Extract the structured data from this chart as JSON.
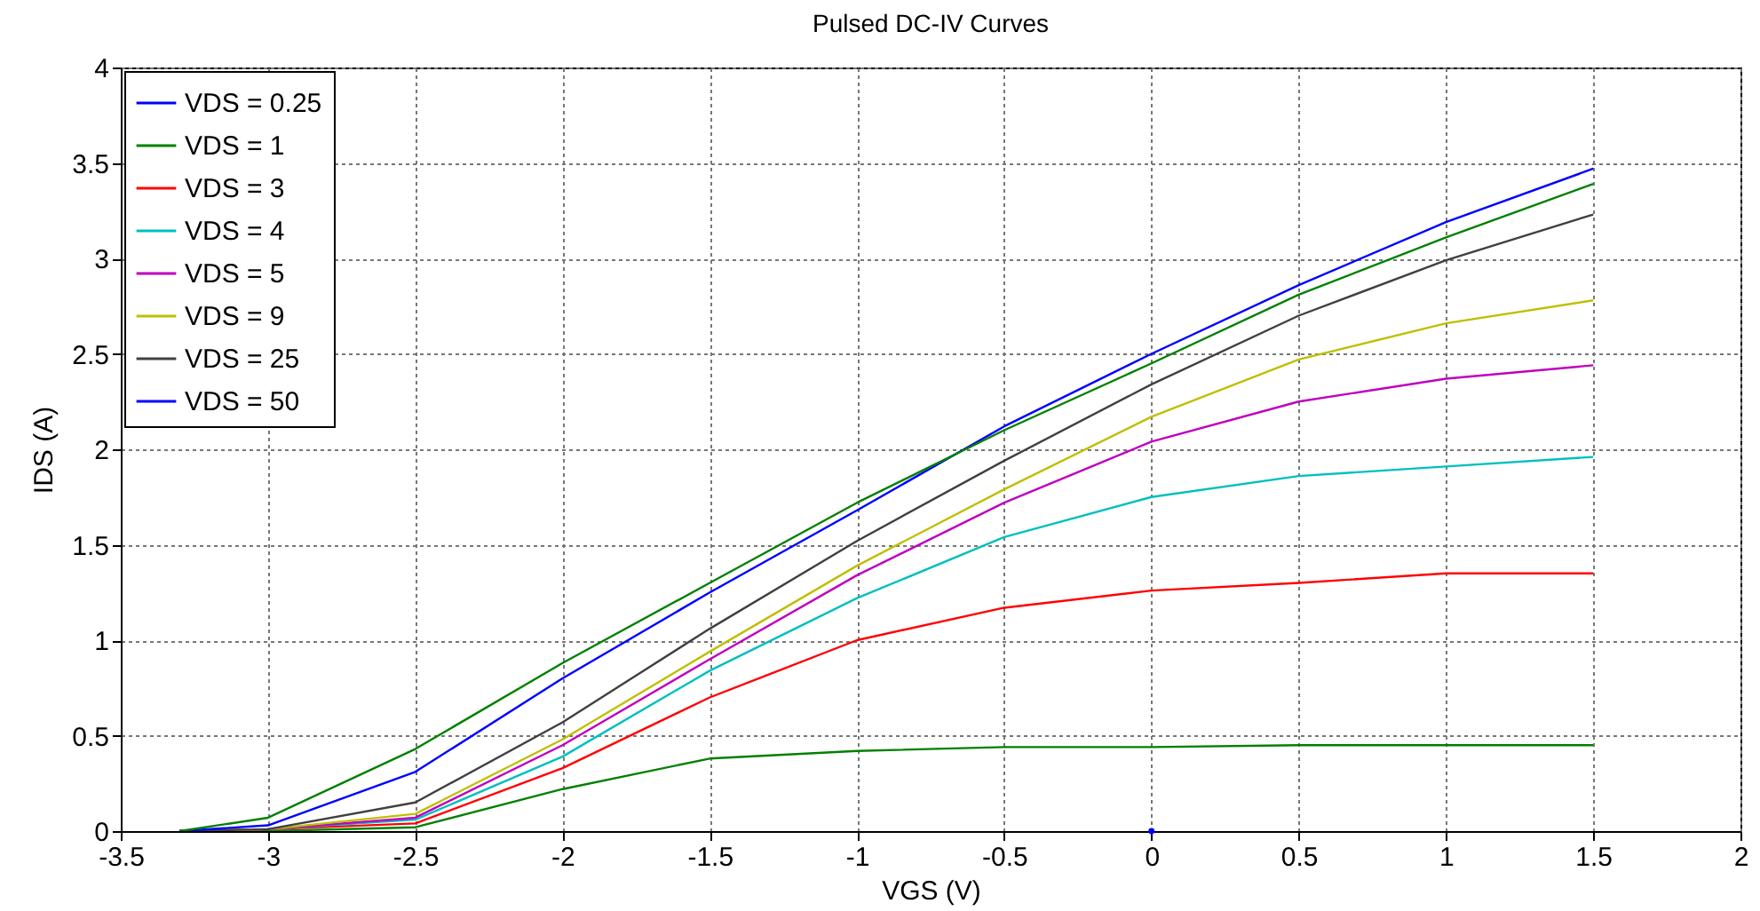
{
  "chart_data": {
    "type": "line",
    "title": "Pulsed DC-IV Curves",
    "xlabel": "VGS (V)",
    "ylabel": "IDS (A)",
    "xlim": [
      -3.5,
      2
    ],
    "xticks": [
      -3.5,
      -3,
      -2.5,
      -2,
      -1.5,
      -1,
      -0.5,
      0,
      0.5,
      1,
      1.5,
      2
    ],
    "ylim": [
      0,
      4
    ],
    "yticks": [
      0,
      0.5,
      1,
      1.5,
      2,
      2.5,
      3,
      3.5,
      4
    ],
    "grid": true,
    "legend": "top left",
    "x": [
      -3.3,
      -3,
      -2.5,
      -2,
      -1.5,
      -1,
      -0.5,
      0,
      0.5,
      1,
      1.5
    ],
    "series": [
      {
        "name": "VDS = 0.25",
        "color": "#0000ff",
        "marker": "circle",
        "x": [
          0
        ],
        "values": [
          0
        ]
      },
      {
        "name": "VDS = 1",
        "color": "#008000",
        "values": [
          0,
          0.0,
          0.02,
          0.22,
          0.38,
          0.42,
          0.44,
          0.44,
          0.45,
          0.45,
          0.45
        ]
      },
      {
        "name": "VDS = 3",
        "color": "#ff0000",
        "values": [
          0,
          0.01,
          0.04,
          0.33,
          0.7,
          1.0,
          1.17,
          1.26,
          1.3,
          1.35,
          1.35
        ]
      },
      {
        "name": "VDS = 4",
        "color": "#00bfbf",
        "values": [
          0,
          0.01,
          0.06,
          0.39,
          0.84,
          1.22,
          1.54,
          1.75,
          1.86,
          1.91,
          1.96
        ]
      },
      {
        "name": "VDS = 5",
        "color": "#bf00bf",
        "values": [
          0,
          0.01,
          0.07,
          0.45,
          0.9,
          1.34,
          1.72,
          2.04,
          2.25,
          2.37,
          2.44
        ]
      },
      {
        "name": "VDS = 9",
        "color": "#bfbf00",
        "values": [
          0,
          0.01,
          0.09,
          0.48,
          0.94,
          1.39,
          1.79,
          2.17,
          2.47,
          2.66,
          2.78
        ]
      },
      {
        "name": "VDS = 25",
        "color": "#404040",
        "values": [
          0,
          0.01,
          0.15,
          0.57,
          1.06,
          1.52,
          1.94,
          2.34,
          2.7,
          2.99,
          3.23
        ]
      },
      {
        "name": "VDS = 50",
        "color": "#0000ff",
        "values": [
          0,
          0.03,
          0.31,
          0.8,
          1.25,
          1.68,
          2.12,
          2.5,
          2.86,
          3.19,
          3.47
        ]
      },
      {
        "color": "#008000",
        "values": [
          0,
          0.07,
          0.43,
          0.88,
          1.3,
          1.72,
          2.1,
          2.45,
          2.81,
          3.11,
          3.39
        ]
      }
    ]
  }
}
